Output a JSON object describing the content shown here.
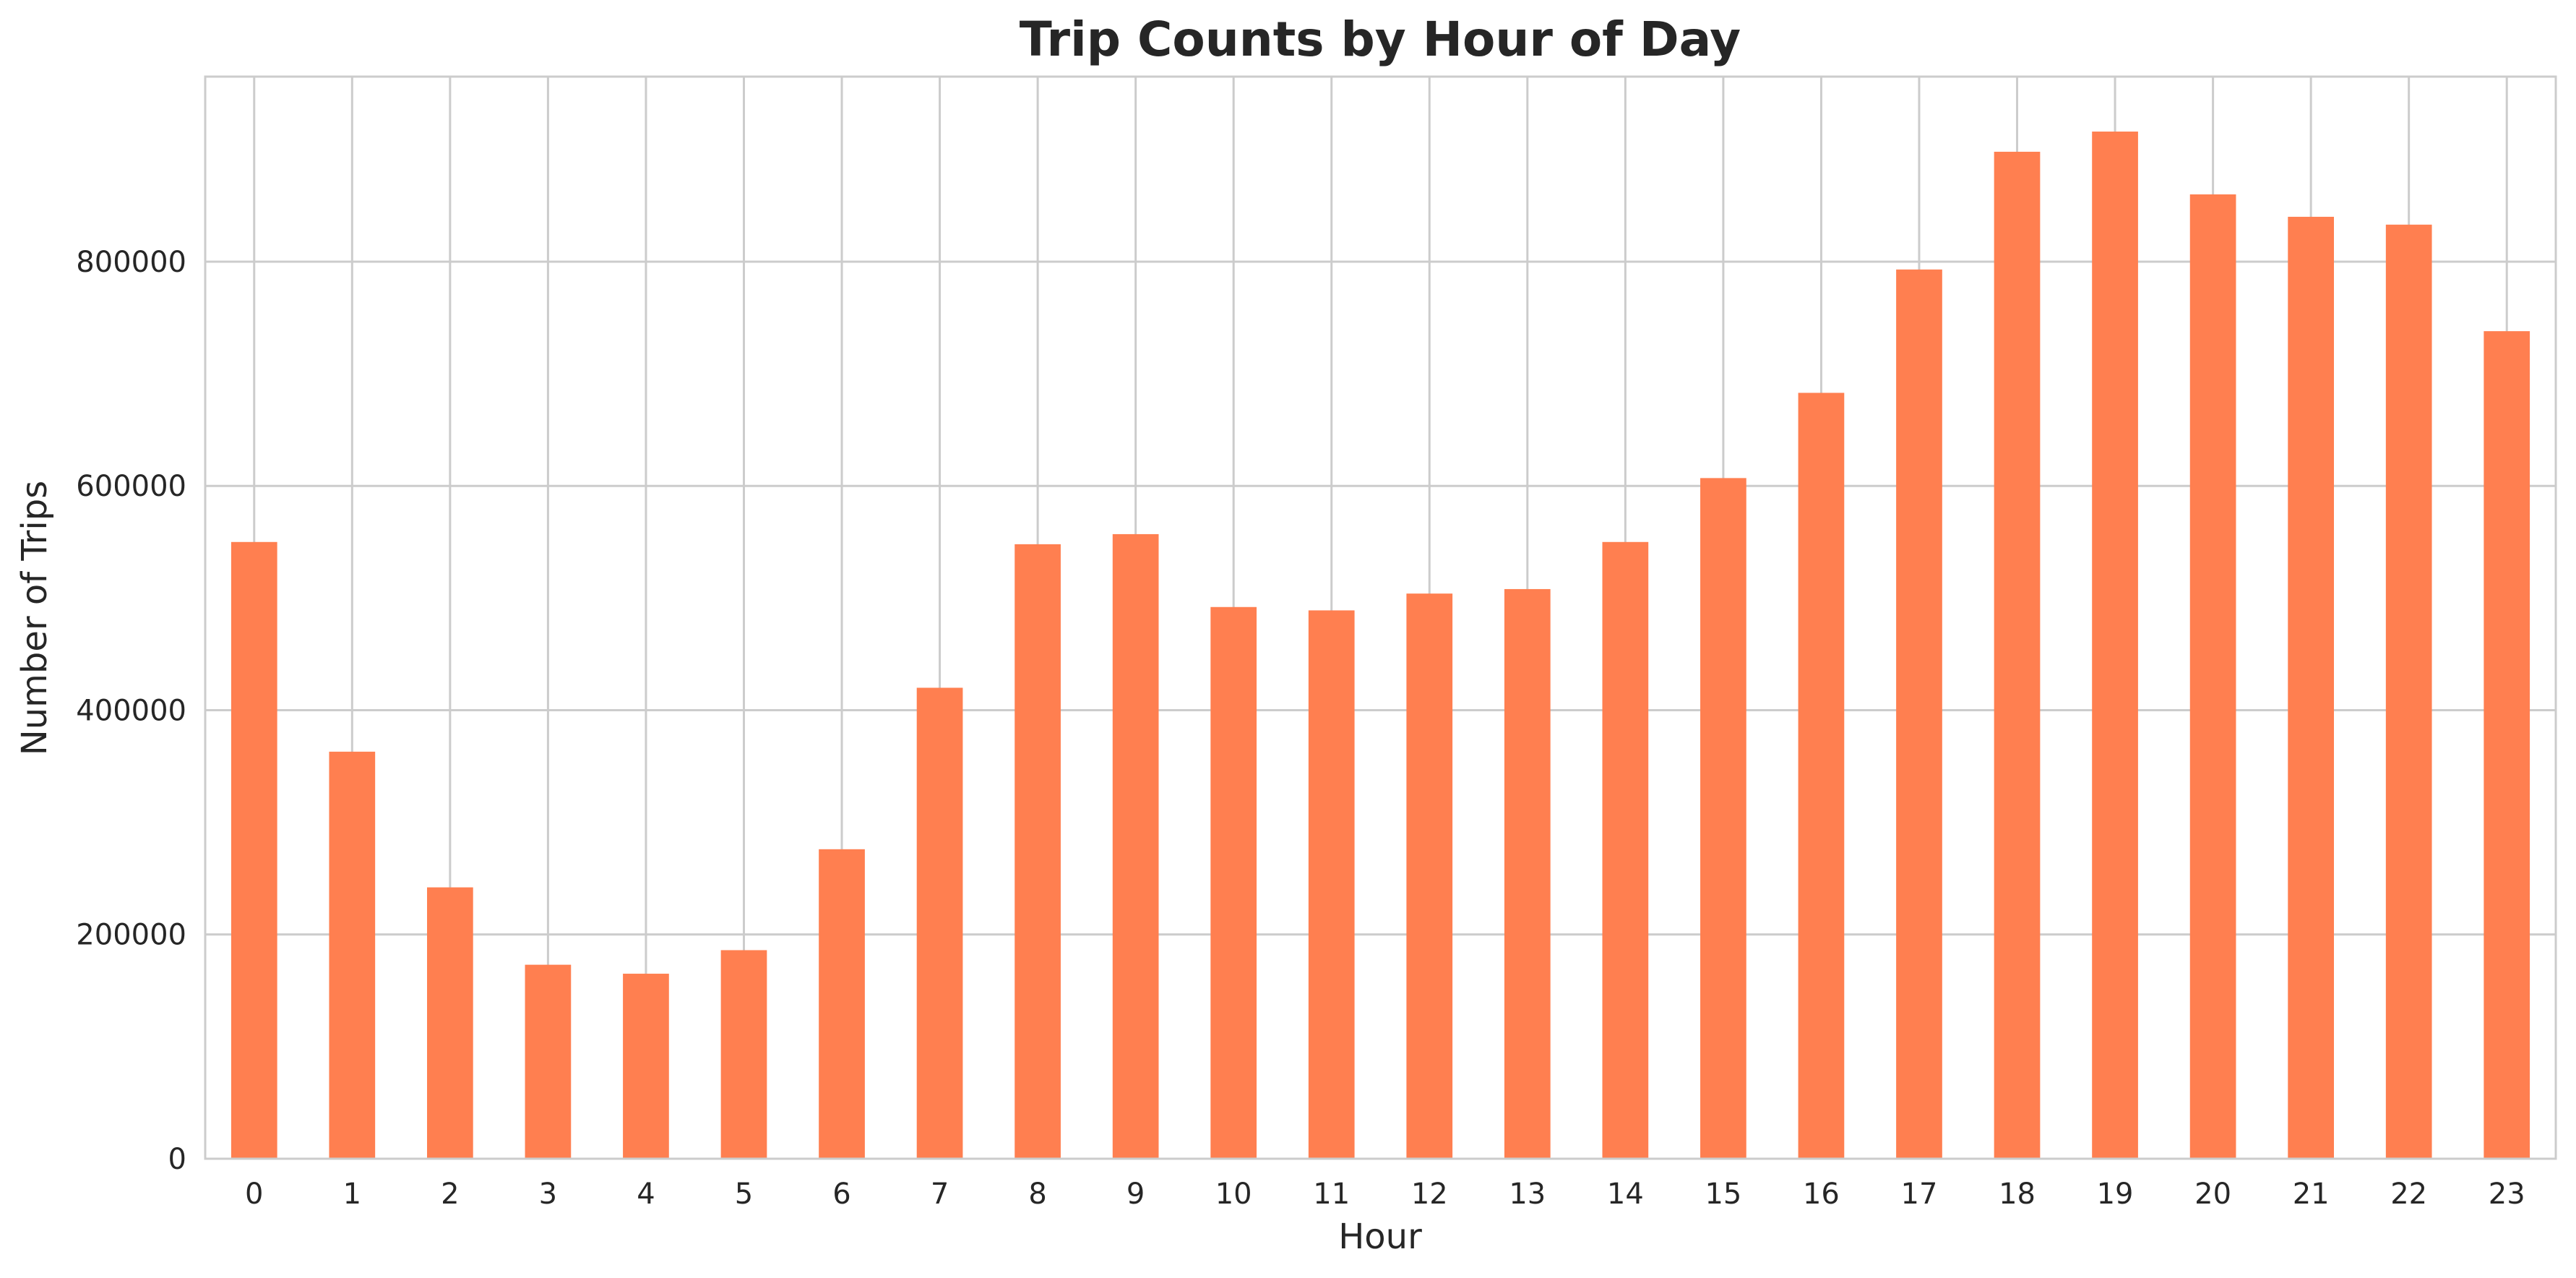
{
  "chart_data": {
    "type": "bar",
    "title": "Trip Counts by Hour of Day",
    "xlabel": "Hour",
    "ylabel": "Number of Trips",
    "categories": [
      "0",
      "1",
      "2",
      "3",
      "4",
      "5",
      "6",
      "7",
      "8",
      "9",
      "10",
      "11",
      "12",
      "13",
      "14",
      "15",
      "16",
      "17",
      "18",
      "19",
      "20",
      "21",
      "22",
      "23"
    ],
    "values": [
      550000,
      363000,
      242000,
      173000,
      165000,
      186000,
      276000,
      420000,
      548000,
      557000,
      492000,
      489000,
      504000,
      508000,
      550000,
      607000,
      683000,
      793000,
      898000,
      916000,
      860000,
      840000,
      833000,
      738000
    ],
    "ylim": [
      0,
      965000
    ],
    "yticks": [
      0,
      200000,
      400000,
      600000,
      800000
    ],
    "ytick_labels": [
      "0",
      "200000",
      "400000",
      "600000",
      "800000"
    ],
    "grid": true,
    "bar_color": "#ff7f50",
    "grid_color": "#cccccc",
    "text_color": "#262626"
  }
}
